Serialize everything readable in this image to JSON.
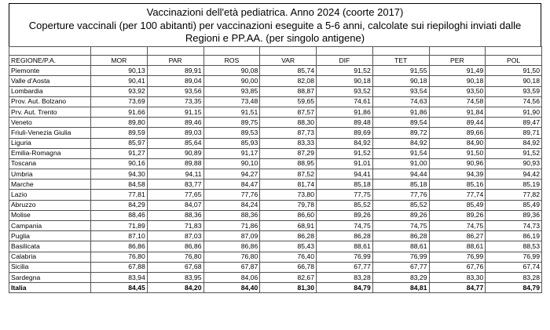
{
  "title": "Vaccinazioni dell'età pediatrica. Anno 2024 (coorte 2017)",
  "subtitle": "Coperture vaccinali (per 100 abitanti) per vaccinazioni eseguite a  5-6 anni, calcolate sui riepiloghi inviati dalle Regioni e PP.AA. (per singolo antigene)",
  "columns": [
    "REGIONE/P.A.",
    "MOR",
    "PAR",
    "ROS",
    "VAR",
    "DIF",
    "TET",
    "PER",
    "POL"
  ],
  "rows": [
    {
      "region": "Piemonte",
      "values": [
        "90,13",
        "89,91",
        "90,08",
        "85,74",
        "91,52",
        "91,55",
        "91,49",
        "91,50"
      ]
    },
    {
      "region": "Valle d'Aosta",
      "values": [
        "90,41",
        "89,04",
        "90,00",
        "82,08",
        "90,18",
        "90,18",
        "90,18",
        "90,18"
      ]
    },
    {
      "region": "Lombardia",
      "values": [
        "93,92",
        "93,56",
        "93,85",
        "88,87",
        "93,52",
        "93,54",
        "93,50",
        "93,59"
      ]
    },
    {
      "region": "Prov. Aut. Bolzano",
      "values": [
        "73,69",
        "73,35",
        "73,48",
        "59,65",
        "74,61",
        "74,63",
        "74,58",
        "74,56"
      ]
    },
    {
      "region": "Prv. Aut. Trento",
      "values": [
        "91,66",
        "91,15",
        "91,51",
        "87,57",
        "91,86",
        "91,86",
        "91,84",
        "91,90"
      ]
    },
    {
      "region": "Veneto",
      "values": [
        "89,80",
        "89,46",
        "89,75",
        "88,30",
        "89,48",
        "89,54",
        "89,44",
        "89,47"
      ]
    },
    {
      "region": "Friuli-Venezia Giulia",
      "values": [
        "89,59",
        "89,03",
        "89,53",
        "87,73",
        "89,69",
        "89,72",
        "89,66",
        "89,71"
      ]
    },
    {
      "region": "Liguria",
      "values": [
        "85,97",
        "85,64",
        "85,93",
        "83,33",
        "84,92",
        "84,92",
        "84,90",
        "84,92"
      ]
    },
    {
      "region": "Emilia-Romagna",
      "values": [
        "91,27",
        "90,89",
        "91,17",
        "87,29",
        "91,52",
        "91,54",
        "91,50",
        "91,52"
      ]
    },
    {
      "region": "Toscana",
      "values": [
        "90,16",
        "89,88",
        "90,10",
        "88,95",
        "91,01",
        "91,00",
        "90,96",
        "90,93"
      ]
    },
    {
      "region": "Umbria",
      "values": [
        "94,30",
        "94,11",
        "94,27",
        "87,52",
        "94,41",
        "94,44",
        "94,39",
        "94,42"
      ]
    },
    {
      "region": "Marche",
      "values": [
        "84,58",
        "83,77",
        "84,47",
        "81,74",
        "85,18",
        "85,18",
        "85,16",
        "85,19"
      ]
    },
    {
      "region": "Lazio",
      "values": [
        "77,81",
        "77,65",
        "77,76",
        "73,80",
        "77,75",
        "77,76",
        "77,74",
        "77,82"
      ]
    },
    {
      "region": "Abruzzo",
      "values": [
        "84,29",
        "84,07",
        "84,24",
        "79,78",
        "85,52",
        "85,52",
        "85,49",
        "85,49"
      ]
    },
    {
      "region": "Molise",
      "values": [
        "88,46",
        "88,36",
        "88,36",
        "86,60",
        "89,26",
        "89,26",
        "89,26",
        "89,36"
      ]
    },
    {
      "region": "Campania",
      "values": [
        "71,89",
        "71,83",
        "71,86",
        "68,91",
        "74,75",
        "74,75",
        "74,75",
        "74,73"
      ]
    },
    {
      "region": "Puglia",
      "values": [
        "87,10",
        "87,03",
        "87,09",
        "86,28",
        "86,28",
        "86,28",
        "86,27",
        "86,19"
      ]
    },
    {
      "region": "Basilicata",
      "values": [
        "86,86",
        "86,86",
        "86,86",
        "85,43",
        "88,61",
        "88,61",
        "88,61",
        "88,53"
      ]
    },
    {
      "region": "Calabria",
      "values": [
        "76,80",
        "76,80",
        "76,80",
        "76,40",
        "76,99",
        "76,99",
        "76,99",
        "76,99"
      ]
    },
    {
      "region": "Sicilia",
      "values": [
        "67,88",
        "67,68",
        "67,87",
        "66,78",
        "67,77",
        "67,77",
        "67,76",
        "67,74"
      ]
    },
    {
      "region": "Sardegna",
      "values": [
        "83,94",
        "83,95",
        "84,06",
        "82,67",
        "83,28",
        "83,29",
        "83,30",
        "83,28"
      ]
    }
  ],
  "total": {
    "region": "Italia",
    "values": [
      "84,45",
      "84,20",
      "84,40",
      "81,30",
      "84,79",
      "84,81",
      "84,77",
      "84,79"
    ]
  }
}
